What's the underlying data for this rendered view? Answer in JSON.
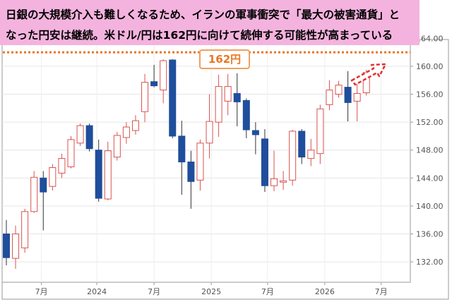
{
  "headline": {
    "line1": "日銀の大規模介入も難しくなるため、イランの軍事衝突で「最大の被害通貨」と",
    "line2": "なった円安は継続。米ドル/円は162円に向けて続伸する可能性が高まっている"
  },
  "target": {
    "label": "162円",
    "value": 162,
    "line_color": "#e87722"
  },
  "colors": {
    "up": "#d9534f",
    "down": "#1f4e9c",
    "arrow": "#e03030",
    "banner": "#f4b3de"
  },
  "chart_data": {
    "type": "candlestick",
    "title": "",
    "xlabel": "",
    "ylabel": "",
    "ylim": [
      129.5,
      165.5
    ],
    "y_ticks": [
      "132.00",
      "136.00",
      "140.00",
      "144.00",
      "148.00",
      "152.00",
      "156.00",
      "160.00",
      "164.00"
    ],
    "x_ticks": [
      {
        "label": "7月",
        "index": 3.8
      },
      {
        "label": "2024",
        "index": 9.8
      },
      {
        "label": "7月",
        "index": 16.0
      },
      {
        "label": "2025",
        "index": 22.2
      },
      {
        "label": "7月",
        "index": 28.3
      },
      {
        "label": "2026",
        "index": 34.5
      },
      {
        "label": "7月",
        "index": 40.6
      }
    ],
    "candles": [
      {
        "o": 136.0,
        "h": 138.0,
        "l": 131.5,
        "c": 132.6
      },
      {
        "o": 132.5,
        "h": 137.2,
        "l": 131.0,
        "c": 136.0
      },
      {
        "o": 134.0,
        "h": 139.6,
        "l": 133.3,
        "c": 139.2
      },
      {
        "o": 139.2,
        "h": 145.0,
        "l": 139.0,
        "c": 144.1
      },
      {
        "o": 144.0,
        "h": 145.0,
        "l": 136.5,
        "c": 142.0
      },
      {
        "o": 142.8,
        "h": 146.0,
        "l": 142.2,
        "c": 145.5
      },
      {
        "o": 144.7,
        "h": 147.5,
        "l": 144.0,
        "c": 146.8
      },
      {
        "o": 145.6,
        "h": 150.0,
        "l": 145.4,
        "c": 149.5
      },
      {
        "o": 149.0,
        "h": 151.8,
        "l": 148.6,
        "c": 151.5
      },
      {
        "o": 151.5,
        "h": 151.8,
        "l": 147.8,
        "c": 148.2
      },
      {
        "o": 148.0,
        "h": 149.5,
        "l": 140.6,
        "c": 141.1
      },
      {
        "o": 141.0,
        "h": 149.2,
        "l": 140.8,
        "c": 147.9
      },
      {
        "o": 147.0,
        "h": 150.6,
        "l": 146.5,
        "c": 150.1
      },
      {
        "o": 149.8,
        "h": 152.0,
        "l": 148.9,
        "c": 151.3
      },
      {
        "o": 150.8,
        "h": 153.0,
        "l": 150.2,
        "c": 152.2
      },
      {
        "o": 153.5,
        "h": 158.9,
        "l": 152.0,
        "c": 157.7
      },
      {
        "o": 157.8,
        "h": 160.2,
        "l": 157.0,
        "c": 157.2
      },
      {
        "o": 156.6,
        "h": 161.0,
        "l": 154.7,
        "c": 160.8
      },
      {
        "o": 160.9,
        "h": 161.0,
        "l": 149.7,
        "c": 150.0
      },
      {
        "o": 150.0,
        "h": 152.2,
        "l": 141.6,
        "c": 146.3
      },
      {
        "o": 146.3,
        "h": 147.9,
        "l": 139.6,
        "c": 143.5
      },
      {
        "o": 143.7,
        "h": 149.5,
        "l": 142.2,
        "c": 149.0
      },
      {
        "o": 149.0,
        "h": 156.0,
        "l": 146.8,
        "c": 152.1
      },
      {
        "o": 152.0,
        "h": 158.8,
        "l": 149.9,
        "c": 157.1
      },
      {
        "o": 155.0,
        "h": 158.9,
        "l": 153.0,
        "c": 157.1
      },
      {
        "o": 156.1,
        "h": 159.0,
        "l": 151.4,
        "c": 154.9
      },
      {
        "o": 155.1,
        "h": 155.4,
        "l": 149.7,
        "c": 150.9
      },
      {
        "o": 150.8,
        "h": 152.0,
        "l": 147.4,
        "c": 150.2
      },
      {
        "o": 149.6,
        "h": 151.0,
        "l": 142.0,
        "c": 142.9
      },
      {
        "o": 142.9,
        "h": 147.9,
        "l": 142.1,
        "c": 143.9
      },
      {
        "o": 143.4,
        "h": 145.0,
        "l": 142.3,
        "c": 143.6
      },
      {
        "o": 143.7,
        "h": 150.9,
        "l": 142.9,
        "c": 150.7
      },
      {
        "o": 150.7,
        "h": 151.0,
        "l": 146.0,
        "c": 147.0
      },
      {
        "o": 146.8,
        "h": 149.6,
        "l": 145.7,
        "c": 148.0
      },
      {
        "o": 147.5,
        "h": 154.5,
        "l": 146.0,
        "c": 153.9
      },
      {
        "o": 154.5,
        "h": 158.0,
        "l": 153.7,
        "c": 156.6
      },
      {
        "o": 156.0,
        "h": 157.9,
        "l": 155.5,
        "c": 157.3
      },
      {
        "o": 157.0,
        "h": 159.3,
        "l": 152.1,
        "c": 154.8
      },
      {
        "o": 155.0,
        "h": 157.5,
        "l": 152.1,
        "c": 156.1
      },
      {
        "o": 156.2,
        "h": 159.5,
        "l": 155.8,
        "c": 159.1
      }
    ]
  }
}
